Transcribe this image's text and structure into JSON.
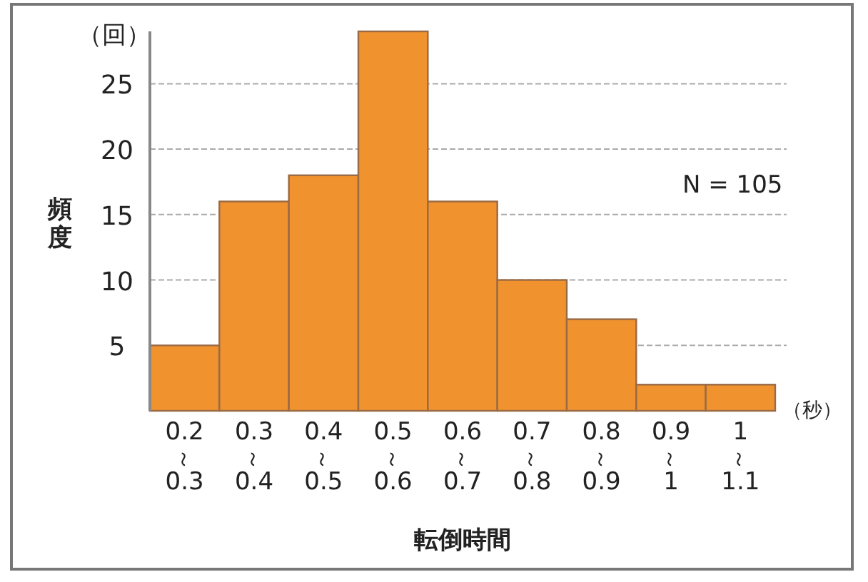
{
  "chart_data": {
    "type": "bar",
    "categories": [
      "0.2～0.3",
      "0.3～0.4",
      "0.4～0.5",
      "0.5～0.6",
      "0.6～0.7",
      "0.7～0.8",
      "0.8～0.9",
      "0.9～1",
      "1～1.1"
    ],
    "values": [
      5,
      16,
      18,
      29,
      16,
      10,
      7,
      2,
      2
    ],
    "color": "#f0922e",
    "xlabel": "転倒時間",
    "ylabel": "頻度",
    "ylim": [
      0,
      29
    ],
    "yticks": [
      5,
      10,
      15,
      20,
      25
    ],
    "grid": "y",
    "annotations": [
      "（回）",
      "（秒）",
      "N = 105"
    ]
  }
}
